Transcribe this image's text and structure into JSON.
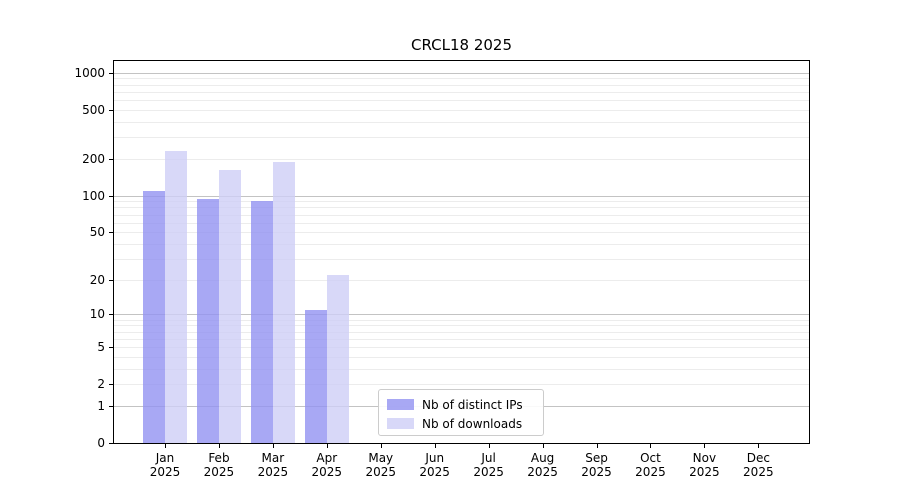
{
  "title": "CRCL18 2025",
  "legend": {
    "items": [
      {
        "label": "Nb of distinct IPs",
        "series": "ips"
      },
      {
        "label": "Nb of downloads",
        "series": "downloads"
      }
    ]
  },
  "colors": {
    "bar_ips": "rgba(146,146,241,0.8)",
    "bar_downloads": "rgba(206,206,246,0.8)",
    "grid_major": "#c3c3c3",
    "grid_minor": "#ececec",
    "axis": "#000000",
    "text": "#000000",
    "legend_border": "#cccccc",
    "background": "#ffffff"
  },
  "chart_data": {
    "type": "bar",
    "title": "CRCL18 2025",
    "categories": [
      "Jan 2025",
      "Feb 2025",
      "Mar 2025",
      "Apr 2025",
      "May 2025",
      "Jun 2025",
      "Jul 2025",
      "Aug 2025",
      "Sep 2025",
      "Oct 2025",
      "Nov 2025",
      "Dec 2025"
    ],
    "series": [
      {
        "name": "Nb of distinct IPs",
        "values": [
          110,
          94,
          90,
          11,
          0,
          0,
          0,
          0,
          0,
          0,
          0,
          0
        ]
      },
      {
        "name": "Nb of downloads",
        "values": [
          233,
          162,
          189,
          22,
          0,
          0,
          0,
          0,
          0,
          0,
          0,
          0
        ]
      }
    ],
    "xlabel": "",
    "ylabel": "",
    "yscale": "log10(value+1)",
    "yticks": [
      0,
      1,
      2,
      5,
      10,
      20,
      50,
      100,
      200,
      500,
      1000
    ],
    "ylim": [
      0,
      1280
    ],
    "grid": "horizontal",
    "grid_major_values": [
      1,
      10,
      100,
      1000
    ],
    "grid_minor_values": [
      2,
      3,
      4,
      5,
      6,
      7,
      8,
      9,
      20,
      30,
      40,
      50,
      60,
      70,
      80,
      90,
      200,
      300,
      400,
      500,
      600,
      700,
      800,
      900
    ],
    "legend_position": "lower center"
  }
}
